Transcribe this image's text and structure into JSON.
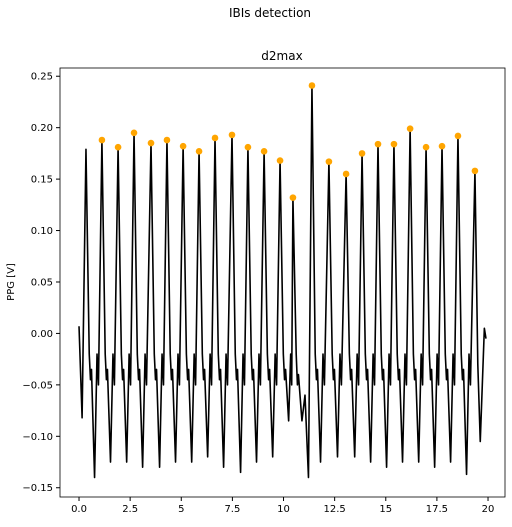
{
  "chart_data": {
    "type": "line",
    "suptitle": "IBIs detection",
    "title": "d2max",
    "ylabel": "PPG [V]",
    "xlim": [
      -0.93,
      20.83
    ],
    "ylim": [
      -0.159,
      0.258
    ],
    "xticks": [
      {
        "value": 0,
        "label": "0.0"
      },
      2.5,
      5,
      7.5,
      10,
      12.5,
      15,
      17.5,
      20
    ],
    "yticks": [
      {
        "value": -0.15,
        "label": "−0.15"
      },
      {
        "value": -0.1,
        "label": "−0.10"
      },
      {
        "value": -0.05,
        "label": "−0.05"
      },
      {
        "value": 0,
        "label": "0.00"
      },
      0.05,
      {
        "value": 0.1,
        "label": "0.10"
      },
      0.15,
      {
        "value": 0.2,
        "label": "0.20"
      },
      0.25
    ],
    "line": {
      "color": "#000000",
      "x": [
        0,
        0.15,
        0.34,
        0.5,
        0.56,
        0.61,
        0.76,
        0.88,
        0.95,
        1.12,
        1.28,
        1.34,
        1.39,
        1.54,
        1.66,
        1.73,
        1.91,
        2.07,
        2.13,
        2.18,
        2.33,
        2.45,
        2.52,
        2.69,
        2.85,
        2.91,
        2.96,
        3.11,
        3.23,
        3.3,
        3.52,
        3.68,
        3.74,
        3.79,
        3.94,
        4.06,
        4.13,
        4.3,
        4.46,
        4.52,
        4.57,
        4.72,
        4.84,
        4.91,
        5.09,
        5.25,
        5.31,
        5.36,
        5.51,
        5.63,
        5.7,
        5.87,
        6.03,
        6.09,
        6.14,
        6.29,
        6.41,
        6.48,
        6.65,
        6.81,
        6.87,
        6.92,
        7.07,
        7.19,
        7.26,
        7.48,
        7.64,
        7.7,
        7.75,
        7.9,
        8.02,
        8.09,
        8.26,
        8.42,
        8.48,
        8.53,
        8.68,
        8.8,
        8.87,
        9.05,
        9.21,
        9.27,
        9.32,
        9.47,
        9.59,
        9.66,
        9.83,
        9.99,
        10.05,
        10.1,
        10.25,
        10.35,
        10.4,
        10.46,
        10.62,
        10.68,
        10.73,
        10.9,
        11.05,
        11.22,
        11.39,
        11.55,
        11.61,
        11.66,
        11.81,
        11.93,
        12.0,
        12.22,
        12.38,
        12.44,
        12.49,
        12.64,
        12.76,
        12.83,
        13.06,
        13.22,
        13.28,
        13.33,
        13.48,
        13.6,
        13.67,
        13.84,
        14.0,
        14.06,
        14.11,
        14.26,
        14.38,
        14.45,
        14.62,
        14.78,
        14.84,
        14.89,
        15.04,
        15.16,
        15.23,
        15.4,
        15.56,
        15.62,
        15.67,
        15.82,
        15.94,
        16.01,
        16.19,
        16.35,
        16.41,
        16.46,
        16.61,
        16.73,
        16.8,
        16.97,
        17.13,
        17.19,
        17.24,
        17.39,
        17.51,
        17.58,
        17.75,
        17.91,
        17.97,
        18.02,
        18.17,
        18.29,
        18.36,
        18.53,
        18.69,
        18.75,
        18.8,
        18.95,
        19.07,
        19.14,
        19.36,
        19.5,
        19.62,
        19.82,
        19.9
      ],
      "y": [
        0.007,
        -0.082,
        0.179,
        -0.02,
        -0.045,
        -0.035,
        -0.14,
        -0.02,
        -0.05,
        0.188,
        -0.02,
        -0.045,
        -0.035,
        -0.125,
        -0.02,
        -0.05,
        0.181,
        -0.02,
        -0.045,
        -0.035,
        -0.125,
        -0.02,
        -0.05,
        0.195,
        -0.02,
        -0.045,
        -0.035,
        -0.13,
        -0.02,
        -0.05,
        0.185,
        -0.02,
        -0.045,
        -0.035,
        -0.13,
        -0.02,
        -0.05,
        0.188,
        -0.02,
        -0.045,
        -0.035,
        -0.125,
        -0.02,
        -0.05,
        0.182,
        -0.02,
        -0.045,
        -0.035,
        -0.125,
        -0.02,
        -0.05,
        0.177,
        -0.02,
        -0.045,
        -0.035,
        -0.12,
        -0.02,
        -0.05,
        0.19,
        -0.02,
        -0.045,
        -0.035,
        -0.13,
        -0.02,
        -0.05,
        0.193,
        -0.02,
        -0.045,
        -0.035,
        -0.135,
        -0.02,
        -0.05,
        0.181,
        -0.02,
        -0.045,
        -0.035,
        -0.125,
        -0.02,
        -0.05,
        0.177,
        -0.02,
        -0.045,
        -0.035,
        -0.12,
        -0.02,
        -0.05,
        0.168,
        -0.02,
        -0.045,
        -0.035,
        -0.085,
        -0.02,
        -0.05,
        0.132,
        -0.02,
        -0.05,
        -0.04,
        -0.085,
        -0.06,
        -0.14,
        0.241,
        -0.02,
        -0.045,
        -0.035,
        -0.125,
        -0.02,
        -0.05,
        0.167,
        -0.02,
        -0.045,
        -0.035,
        -0.12,
        -0.02,
        -0.05,
        0.155,
        -0.02,
        -0.045,
        -0.035,
        -0.12,
        -0.02,
        -0.05,
        0.175,
        -0.02,
        -0.045,
        -0.035,
        -0.125,
        -0.02,
        -0.05,
        0.184,
        -0.02,
        -0.045,
        -0.035,
        -0.13,
        -0.02,
        -0.05,
        0.184,
        -0.02,
        -0.045,
        -0.035,
        -0.125,
        -0.02,
        -0.05,
        0.199,
        -0.02,
        -0.045,
        -0.035,
        -0.125,
        -0.02,
        -0.05,
        0.181,
        -0.02,
        -0.045,
        -0.035,
        -0.13,
        -0.02,
        -0.05,
        0.182,
        -0.02,
        -0.045,
        -0.035,
        -0.125,
        -0.02,
        -0.05,
        0.192,
        -0.02,
        -0.045,
        -0.035,
        -0.137,
        -0.02,
        -0.05,
        0.158,
        -0.03,
        -0.105,
        0.005,
        -0.005
      ]
    },
    "peaks": {
      "color": "#ffa500",
      "x": [
        1.12,
        1.91,
        2.69,
        3.52,
        4.3,
        5.09,
        5.87,
        6.65,
        7.48,
        8.26,
        9.05,
        9.83,
        10.46,
        11.39,
        12.22,
        13.06,
        13.84,
        14.62,
        15.4,
        16.19,
        16.97,
        17.75,
        18.53,
        19.36
      ],
      "y": [
        0.188,
        0.181,
        0.195,
        0.185,
        0.188,
        0.182,
        0.177,
        0.19,
        0.193,
        0.181,
        0.177,
        0.168,
        0.132,
        0.241,
        0.167,
        0.155,
        0.175,
        0.184,
        0.184,
        0.199,
        0.181,
        0.182,
        0.192,
        0.158
      ]
    }
  }
}
